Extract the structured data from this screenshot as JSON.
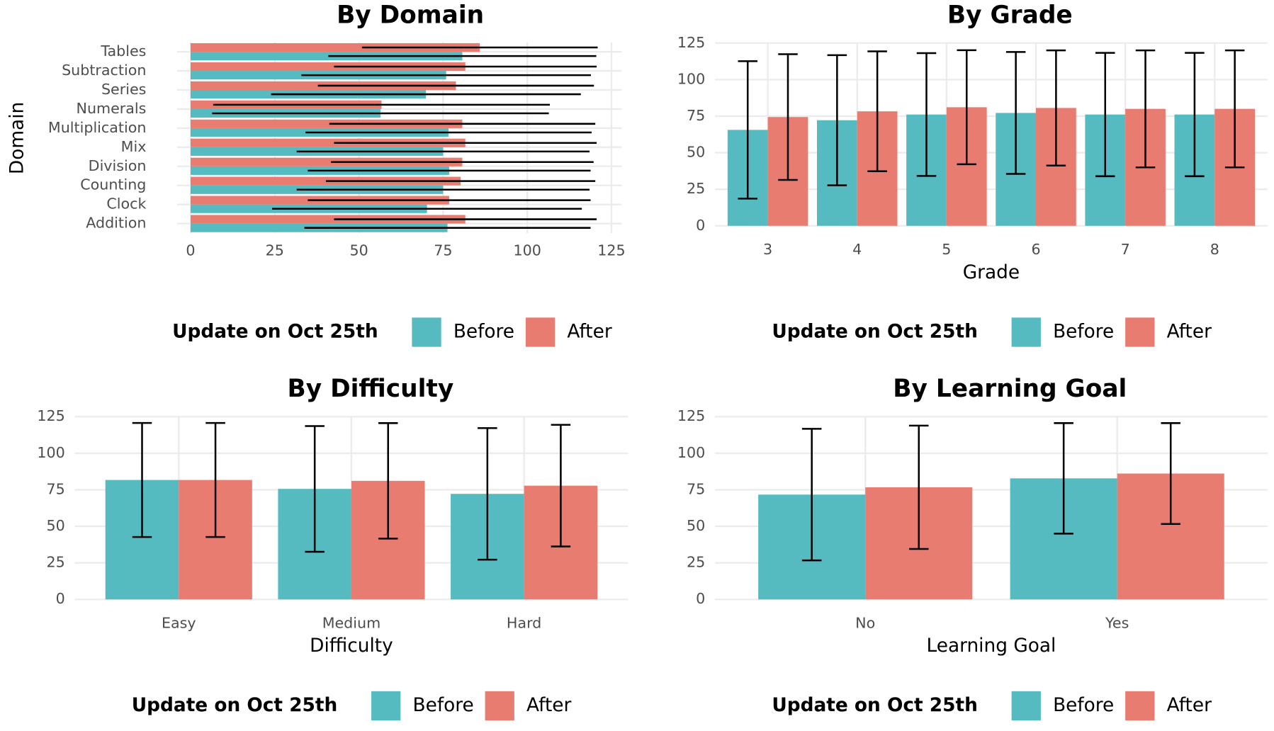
{
  "chart_data": [
    {
      "type": "bar",
      "orientation": "horizontal",
      "title": "By Domain",
      "y_label": "Domain",
      "categories": [
        "Addition",
        "Clock",
        "Counting",
        "Division",
        "Mix",
        "Multiplication",
        "Numerals",
        "Series",
        "Subtraction",
        "Tables"
      ],
      "series": [
        {
          "name": "Before",
          "color": "#55bbc1",
          "values": [
            76.3,
            70.2,
            75,
            76.8,
            75,
            76.6,
            56.4,
            69.9,
            75.9,
            80.7
          ],
          "errors": [
            42.5,
            46,
            43.5,
            42,
            43.5,
            42.5,
            50,
            46,
            43,
            39.8
          ]
        },
        {
          "name": "After",
          "color": "#e87c71",
          "values": [
            81.6,
            76.8,
            80.2,
            80.7,
            81.6,
            80.7,
            56.7,
            78.8,
            81.6,
            85.9
          ],
          "errors": [
            39,
            42,
            40,
            39,
            39,
            39.5,
            50,
            41,
            39,
            35
          ]
        }
      ],
      "xlim": [
        -4,
        128
      ],
      "xticks": [
        0,
        25,
        50,
        75,
        100,
        125
      ],
      "grid": true,
      "legend_title": "Update on Oct 25th"
    },
    {
      "type": "bar",
      "orientation": "vertical",
      "title": "By Grade",
      "x_label": "Grade",
      "categories": [
        "3",
        "4",
        "5",
        "6",
        "7",
        "8"
      ],
      "series": [
        {
          "name": "Before",
          "color": "#55bbc1",
          "values": [
            65.6,
            72.2,
            76.1,
            77.2,
            76.1,
            76.1
          ],
          "errors": [
            47,
            44.5,
            42,
            41.7,
            42.2,
            42.2
          ]
        },
        {
          "name": "After",
          "color": "#e87c71",
          "values": [
            74.4,
            78.3,
            81.1,
            80.6,
            80,
            80
          ],
          "errors": [
            43,
            41,
            39,
            39.4,
            40,
            40
          ]
        }
      ],
      "ylim": [
        0,
        125
      ],
      "yticks": [
        0,
        25,
        50,
        75,
        100,
        125
      ],
      "grid": true,
      "legend_title": "Update on Oct 25th"
    },
    {
      "type": "bar",
      "orientation": "vertical",
      "title": "By Difficulty",
      "x_label": "Difficulty",
      "categories": [
        "Easy",
        "Medium",
        "Hard"
      ],
      "series": [
        {
          "name": "Before",
          "color": "#55bbc1",
          "values": [
            81.7,
            75.6,
            72.2
          ],
          "errors": [
            39,
            43,
            45
          ]
        },
        {
          "name": "After",
          "color": "#e87c71",
          "values": [
            81.7,
            81.1,
            77.8
          ],
          "errors": [
            39,
            39.5,
            41.6
          ]
        }
      ],
      "ylim": [
        0,
        125
      ],
      "yticks": [
        0,
        25,
        50,
        75,
        100,
        125
      ],
      "grid": true,
      "legend_title": "Update on Oct 25th"
    },
    {
      "type": "bar",
      "orientation": "vertical",
      "title": "By Learning Goal",
      "x_label": "Learning Goal",
      "categories": [
        "No",
        "Yes"
      ],
      "series": [
        {
          "name": "Before",
          "color": "#55bbc1",
          "values": [
            71.7,
            82.8
          ],
          "errors": [
            45,
            37.8
          ]
        },
        {
          "name": "After",
          "color": "#e87c71",
          "values": [
            76.7,
            86.1
          ],
          "errors": [
            42.2,
            34.5
          ]
        }
      ],
      "ylim": [
        0,
        125
      ],
      "yticks": [
        0,
        25,
        50,
        75,
        100,
        125
      ],
      "grid": true,
      "legend_title": "Update on Oct 25th"
    }
  ]
}
